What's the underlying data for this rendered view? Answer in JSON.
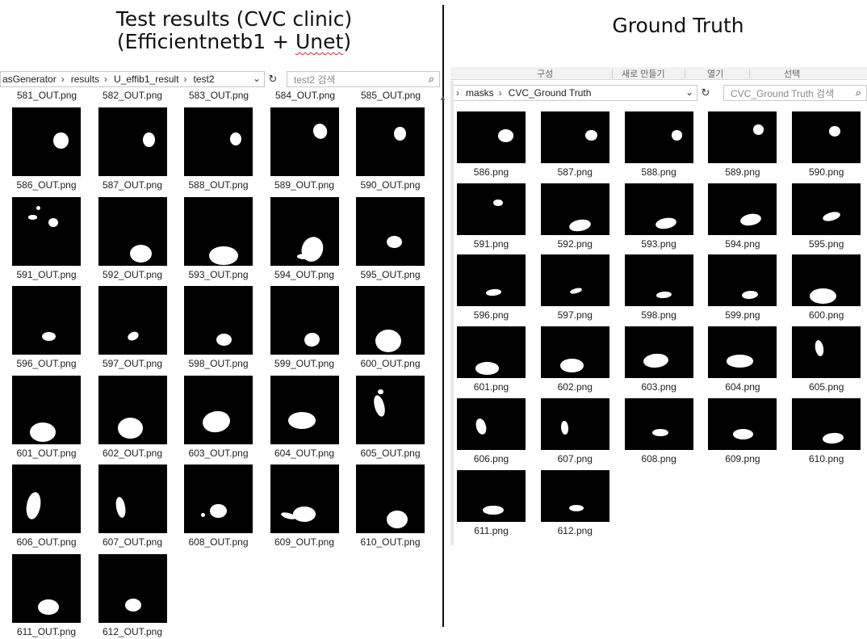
{
  "left_title": {
    "line1": "Test results (CVC clinic)",
    "line2_a": "(Efficientnetb1 + ",
    "line2_b": "Unet",
    "line2_c": ")"
  },
  "right_title": "Ground Truth",
  "left_window": {
    "address": [
      "asGenerator",
      "results",
      "U_effib1_result",
      "test2"
    ],
    "search_placeholder": "test2 검색",
    "top_row": [
      "581_OUT.png",
      "582_OUT.png",
      "583_OUT.png",
      "584_OUT.png",
      "585_OUT.png"
    ],
    "items": [
      {
        "name": "586_OUT.png",
        "blobs": [
          [
            0.71,
            0.48,
            0.22,
            0.24,
            0
          ]
        ]
      },
      {
        "name": "587_OUT.png",
        "blobs": [
          [
            0.74,
            0.47,
            0.18,
            0.22,
            0
          ]
        ]
      },
      {
        "name": "588_OUT.png",
        "blobs": [
          [
            0.75,
            0.46,
            0.16,
            0.19,
            0
          ]
        ]
      },
      {
        "name": "589_OUT.png",
        "blobs": [
          [
            0.73,
            0.35,
            0.2,
            0.22,
            -20
          ]
        ]
      },
      {
        "name": "590_OUT.png",
        "blobs": [
          [
            0.64,
            0.38,
            0.17,
            0.2,
            0
          ]
        ]
      },
      {
        "name": "591_OUT.png",
        "blobs": [
          [
            0.3,
            0.3,
            0.14,
            0.06,
            0
          ],
          [
            0.6,
            0.38,
            0.14,
            0.13,
            0
          ],
          [
            0.38,
            0.16,
            0.06,
            0.06,
            0
          ]
        ]
      },
      {
        "name": "592_OUT.png",
        "blobs": [
          [
            0.62,
            0.83,
            0.32,
            0.26,
            0
          ]
        ]
      },
      {
        "name": "593_OUT.png",
        "blobs": [
          [
            0.58,
            0.86,
            0.42,
            0.28,
            0
          ]
        ]
      },
      {
        "name": "594_OUT.png",
        "blobs": [
          [
            0.62,
            0.76,
            0.3,
            0.36,
            20
          ],
          [
            0.5,
            0.87,
            0.22,
            0.08,
            0
          ]
        ]
      },
      {
        "name": "595_OUT.png",
        "blobs": [
          [
            0.56,
            0.66,
            0.22,
            0.18,
            0
          ]
        ]
      },
      {
        "name": "596_OUT.png",
        "blobs": [
          [
            0.53,
            0.73,
            0.2,
            0.13,
            0
          ]
        ]
      },
      {
        "name": "597_OUT.png",
        "blobs": [
          [
            0.51,
            0.73,
            0.17,
            0.12,
            -25
          ]
        ]
      },
      {
        "name": "598_OUT.png",
        "blobs": [
          [
            0.58,
            0.78,
            0.22,
            0.18,
            0
          ]
        ]
      },
      {
        "name": "599_OUT.png",
        "blobs": [
          [
            0.61,
            0.78,
            0.22,
            0.2,
            -10
          ]
        ]
      },
      {
        "name": "600_OUT.png",
        "blobs": [
          [
            0.47,
            0.8,
            0.38,
            0.34,
            0
          ]
        ]
      },
      {
        "name": "601_OUT.png",
        "blobs": [
          [
            0.45,
            0.83,
            0.38,
            0.28,
            0
          ]
        ]
      },
      {
        "name": "602_OUT.png",
        "blobs": [
          [
            0.47,
            0.77,
            0.36,
            0.3,
            0
          ]
        ]
      },
      {
        "name": "603_OUT.png",
        "blobs": [
          [
            0.47,
            0.67,
            0.4,
            0.3,
            -10
          ]
        ]
      },
      {
        "name": "604_OUT.png",
        "blobs": [
          [
            0.46,
            0.66,
            0.4,
            0.24,
            0
          ]
        ]
      },
      {
        "name": "605_OUT.png",
        "blobs": [
          [
            0.34,
            0.45,
            0.14,
            0.32,
            -15
          ],
          [
            0.36,
            0.24,
            0.08,
            0.08,
            0
          ]
        ]
      },
      {
        "name": "606_OUT.png",
        "blobs": [
          [
            0.31,
            0.6,
            0.2,
            0.4,
            10
          ]
        ]
      },
      {
        "name": "607_OUT.png",
        "blobs": [
          [
            0.33,
            0.62,
            0.13,
            0.3,
            -10
          ]
        ]
      },
      {
        "name": "608_OUT.png",
        "blobs": [
          [
            0.5,
            0.68,
            0.24,
            0.2,
            0
          ],
          [
            0.28,
            0.73,
            0.06,
            0.06,
            0
          ]
        ]
      },
      {
        "name": "609_OUT.png",
        "blobs": [
          [
            0.5,
            0.72,
            0.32,
            0.22,
            0
          ],
          [
            0.27,
            0.74,
            0.22,
            0.08,
            15
          ]
        ]
      },
      {
        "name": "610_OUT.png",
        "blobs": [
          [
            0.6,
            0.8,
            0.3,
            0.26,
            0
          ]
        ]
      },
      {
        "name": "611_OUT.png",
        "blobs": [
          [
            0.53,
            0.78,
            0.3,
            0.22,
            0
          ]
        ]
      },
      {
        "name": "612_OUT.png",
        "blobs": [
          [
            0.51,
            0.75,
            0.24,
            0.19,
            0
          ]
        ]
      }
    ]
  },
  "right_window": {
    "ribbon": [
      "구성",
      "새로 만들기",
      "열기",
      "선택"
    ],
    "address": [
      "masks",
      "CVC_Ground Truth"
    ],
    "search_placeholder": "CVC_Ground Truth 검색",
    "items": [
      {
        "name": "586.png",
        "blobs": [
          [
            0.71,
            0.47,
            0.22,
            0.24,
            0
          ]
        ]
      },
      {
        "name": "587.png",
        "blobs": [
          [
            0.74,
            0.46,
            0.17,
            0.2,
            0
          ]
        ]
      },
      {
        "name": "588.png",
        "blobs": [
          [
            0.76,
            0.46,
            0.15,
            0.19,
            0
          ]
        ]
      },
      {
        "name": "589.png",
        "blobs": [
          [
            0.73,
            0.35,
            0.16,
            0.2,
            0
          ]
        ]
      },
      {
        "name": "590.png",
        "blobs": [
          [
            0.62,
            0.38,
            0.17,
            0.2,
            0
          ]
        ]
      },
      {
        "name": "591.png",
        "blobs": [
          [
            0.6,
            0.38,
            0.14,
            0.14,
            0
          ]
        ]
      },
      {
        "name": "592.png",
        "blobs": [
          [
            0.58,
            0.82,
            0.32,
            0.22,
            -10
          ]
        ]
      },
      {
        "name": "593.png",
        "blobs": [
          [
            0.6,
            0.78,
            0.3,
            0.2,
            -10
          ]
        ]
      },
      {
        "name": "594.png",
        "blobs": [
          [
            0.62,
            0.71,
            0.3,
            0.22,
            -10
          ]
        ]
      },
      {
        "name": "595.png",
        "blobs": [
          [
            0.57,
            0.65,
            0.26,
            0.15,
            -15
          ]
        ]
      },
      {
        "name": "596.png",
        "blobs": [
          [
            0.53,
            0.73,
            0.22,
            0.12,
            -5
          ]
        ]
      },
      {
        "name": "597.png",
        "blobs": [
          [
            0.52,
            0.69,
            0.18,
            0.09,
            -15
          ]
        ]
      },
      {
        "name": "598.png",
        "blobs": [
          [
            0.57,
            0.77,
            0.22,
            0.13,
            -5
          ]
        ]
      },
      {
        "name": "599.png",
        "blobs": [
          [
            0.61,
            0.77,
            0.24,
            0.16,
            -5
          ]
        ]
      },
      {
        "name": "600.png",
        "blobs": [
          [
            0.45,
            0.8,
            0.38,
            0.3,
            0
          ]
        ]
      },
      {
        "name": "601.png",
        "blobs": [
          [
            0.44,
            0.81,
            0.34,
            0.24,
            0
          ]
        ]
      },
      {
        "name": "602.png",
        "blobs": [
          [
            0.46,
            0.76,
            0.34,
            0.26,
            0
          ]
        ]
      },
      {
        "name": "603.png",
        "blobs": [
          [
            0.46,
            0.67,
            0.36,
            0.27,
            -5
          ]
        ]
      },
      {
        "name": "604.png",
        "blobs": [
          [
            0.46,
            0.67,
            0.38,
            0.24,
            0
          ]
        ]
      },
      {
        "name": "605.png",
        "blobs": [
          [
            0.4,
            0.42,
            0.12,
            0.32,
            -10
          ]
        ]
      },
      {
        "name": "606.png",
        "blobs": [
          [
            0.35,
            0.55,
            0.14,
            0.32,
            -15
          ]
        ]
      },
      {
        "name": "607.png",
        "blobs": [
          [
            0.35,
            0.57,
            0.1,
            0.26,
            -5
          ]
        ]
      },
      {
        "name": "608.png",
        "blobs": [
          [
            0.52,
            0.67,
            0.24,
            0.15,
            0
          ]
        ]
      },
      {
        "name": "609.png",
        "blobs": [
          [
            0.51,
            0.7,
            0.3,
            0.2,
            0
          ]
        ]
      },
      {
        "name": "610.png",
        "blobs": [
          [
            0.6,
            0.78,
            0.3,
            0.2,
            -5
          ]
        ]
      },
      {
        "name": "611.png",
        "blobs": [
          [
            0.53,
            0.78,
            0.3,
            0.18,
            0
          ]
        ]
      },
      {
        "name": "612.png",
        "blobs": [
          [
            0.52,
            0.74,
            0.22,
            0.13,
            0
          ]
        ]
      }
    ]
  }
}
